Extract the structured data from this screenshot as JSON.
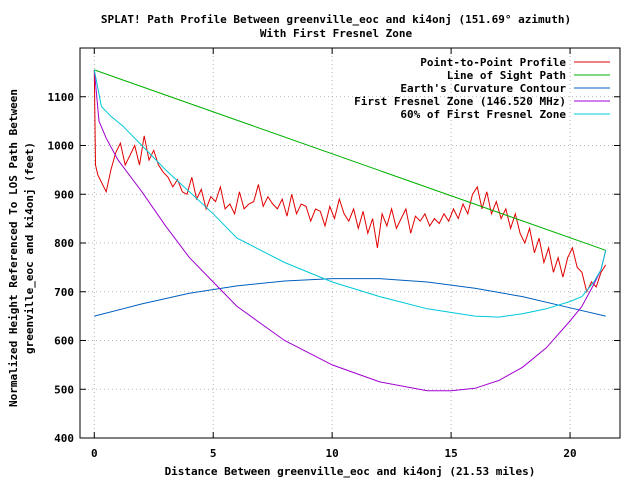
{
  "chart_data": {
    "type": "line",
    "title": "SPLAT! Path Profile Between greenville_eoc and ki4onj (151.69° azimuth)",
    "subtitle": "With First Fresnel Zone",
    "xlabel": "Distance Between greenville_eoc and ki4onj (21.53 miles)",
    "ylabel_line1": "Normalized Height Referenced To LOS Path Between",
    "ylabel_line2": "greenville_eoc and ki4onj (feet)",
    "xlim": [
      -0.6,
      22.1
    ],
    "ylim": [
      400,
      1200
    ],
    "x_ticks": [
      0,
      5,
      10,
      15,
      20
    ],
    "y_ticks": [
      400,
      500,
      600,
      700,
      800,
      900,
      1000,
      1100
    ],
    "grid": true,
    "legend_position": "top-right",
    "series": [
      {
        "name": "Point-to-Point Profile",
        "color": "#e00000",
        "x": [
          0,
          0.05,
          0.15,
          0.3,
          0.5,
          0.7,
          0.9,
          1.1,
          1.3,
          1.5,
          1.7,
          1.9,
          2.1,
          2.3,
          2.5,
          2.7,
          2.9,
          3.1,
          3.3,
          3.5,
          3.7,
          3.9,
          4.1,
          4.3,
          4.5,
          4.7,
          4.9,
          5.1,
          5.3,
          5.5,
          5.7,
          5.9,
          6.1,
          6.3,
          6.5,
          6.7,
          6.9,
          7.1,
          7.3,
          7.5,
          7.7,
          7.9,
          8.1,
          8.3,
          8.5,
          8.7,
          8.9,
          9.1,
          9.3,
          9.5,
          9.7,
          9.9,
          10.1,
          10.3,
          10.5,
          10.7,
          10.9,
          11.1,
          11.3,
          11.5,
          11.7,
          11.9,
          12.1,
          12.3,
          12.5,
          12.7,
          12.9,
          13.1,
          13.3,
          13.5,
          13.7,
          13.9,
          14.1,
          14.3,
          14.5,
          14.7,
          14.9,
          15.1,
          15.3,
          15.5,
          15.7,
          15.9,
          16.1,
          16.3,
          16.5,
          16.7,
          16.9,
          17.1,
          17.3,
          17.5,
          17.7,
          17.9,
          18.1,
          18.3,
          18.5,
          18.7,
          18.9,
          19.1,
          19.3,
          19.5,
          19.7,
          19.9,
          20.1,
          20.3,
          20.5,
          20.7,
          20.9,
          21.1,
          21.3,
          21.5
        ],
        "values": [
          1155,
          960,
          940,
          925,
          905,
          950,
          985,
          1005,
          960,
          980,
          1000,
          960,
          1020,
          970,
          990,
          960,
          945,
          935,
          915,
          930,
          905,
          900,
          935,
          890,
          910,
          870,
          895,
          885,
          915,
          870,
          880,
          860,
          905,
          870,
          880,
          885,
          920,
          875,
          895,
          880,
          870,
          890,
          855,
          900,
          860,
          880,
          875,
          845,
          870,
          865,
          835,
          875,
          850,
          890,
          860,
          845,
          870,
          830,
          865,
          820,
          850,
          790,
          860,
          835,
          870,
          830,
          850,
          870,
          820,
          855,
          845,
          860,
          835,
          850,
          840,
          860,
          845,
          870,
          850,
          880,
          860,
          900,
          915,
          870,
          905,
          860,
          885,
          850,
          870,
          830,
          860,
          820,
          800,
          830,
          780,
          810,
          760,
          790,
          740,
          770,
          730,
          770,
          790,
          750,
          740,
          700,
          720,
          710,
          740,
          755
        ]
      },
      {
        "name": "Line of Sight Path",
        "color": "#00b000",
        "x": [
          0,
          21.5
        ],
        "values": [
          1155,
          785
        ]
      },
      {
        "name": "Earth's Curvature Contour",
        "color": "#0060c0",
        "x": [
          0,
          2,
          4,
          6,
          8,
          10,
          12,
          14,
          16,
          18,
          20,
          21.5
        ],
        "values": [
          650,
          675,
          697,
          712,
          722,
          727,
          727,
          720,
          707,
          690,
          667,
          650
        ]
      },
      {
        "name": "First Fresnel Zone (146.520 MHz)",
        "color": "#a000d0",
        "x": [
          0,
          0.2,
          0.5,
          1,
          2,
          3,
          4,
          5,
          6,
          8,
          10,
          12,
          14,
          15,
          16,
          17,
          18,
          19,
          20,
          20.5,
          21,
          21.3,
          21.5
        ],
        "values": [
          1155,
          1050,
          1015,
          970,
          905,
          835,
          770,
          720,
          670,
          600,
          550,
          515,
          497,
          497,
          502,
          518,
          545,
          585,
          640,
          670,
          715,
          745,
          785
        ]
      },
      {
        "name": "60% of First Fresnel Zone",
        "color": "#00c8d8",
        "x": [
          0,
          0.3,
          0.7,
          1.2,
          2,
          3,
          4,
          5,
          6,
          8,
          10,
          12,
          14,
          16,
          17,
          18,
          19,
          20,
          20.5,
          21,
          21.3,
          21.5
        ],
        "values": [
          1155,
          1080,
          1060,
          1040,
          1000,
          950,
          905,
          860,
          810,
          760,
          720,
          690,
          665,
          650,
          648,
          655,
          665,
          680,
          690,
          720,
          745,
          785
        ]
      }
    ]
  }
}
